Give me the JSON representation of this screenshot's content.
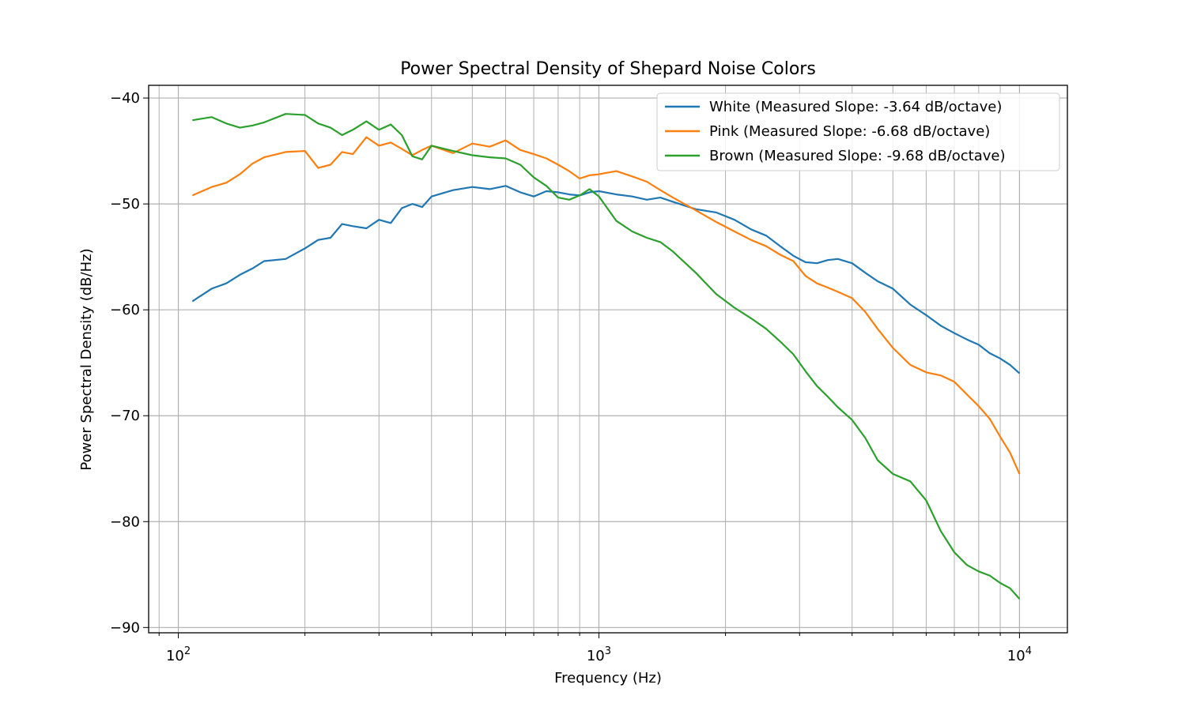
{
  "chart_data": {
    "type": "line",
    "title": "Power Spectral Density of Shepard Noise Colors",
    "xlabel": "Frequency (Hz)",
    "ylabel": "Power Spectral Density (dB/Hz)",
    "xscale": "log",
    "xlim": [
      85,
      13000
    ],
    "ylim": [
      -90.5,
      -38.8
    ],
    "grid": true,
    "grid_minor_x": true,
    "legend_position": "top-right",
    "x_ticks": [
      {
        "value": 100,
        "base": "10",
        "exp": "2"
      },
      {
        "value": 1000,
        "base": "10",
        "exp": "3"
      },
      {
        "value": 10000,
        "base": "10",
        "exp": "4"
      }
    ],
    "y_ticks": [
      {
        "value": -40,
        "label": "−40"
      },
      {
        "value": -50,
        "label": "−50"
      },
      {
        "value": -60,
        "label": "−60"
      },
      {
        "value": -70,
        "label": "−70"
      },
      {
        "value": -80,
        "label": "−80"
      },
      {
        "value": -90,
        "label": "−90"
      }
    ],
    "series": [
      {
        "name": "White (Measured Slope: -3.64 dB/octave)",
        "color": "#1f77b4",
        "x": [
          108,
          120,
          130,
          140,
          150,
          160,
          180,
          200,
          215,
          230,
          245,
          260,
          280,
          300,
          320,
          340,
          360,
          380,
          400,
          450,
          500,
          550,
          600,
          650,
          700,
          750,
          800,
          850,
          900,
          950,
          1000,
          1100,
          1200,
          1300,
          1400,
          1500,
          1700,
          1900,
          2100,
          2300,
          2500,
          2700,
          2900,
          3100,
          3300,
          3500,
          3700,
          4000,
          4300,
          4600,
          5000,
          5500,
          6000,
          6500,
          7000,
          7500,
          8000,
          8500,
          9000,
          9500,
          10000
        ],
        "values": [
          -59.2,
          -58.0,
          -57.5,
          -56.7,
          -56.1,
          -55.4,
          -55.2,
          -54.2,
          -53.4,
          -53.2,
          -51.9,
          -52.1,
          -52.3,
          -51.5,
          -51.8,
          -50.4,
          -50.0,
          -50.3,
          -49.3,
          -48.7,
          -48.4,
          -48.6,
          -48.3,
          -48.9,
          -49.3,
          -48.8,
          -48.9,
          -49.1,
          -49.2,
          -48.9,
          -48.8,
          -49.1,
          -49.3,
          -49.6,
          -49.4,
          -49.8,
          -50.5,
          -50.8,
          -51.5,
          -52.4,
          -53.0,
          -54.0,
          -54.9,
          -55.5,
          -55.6,
          -55.3,
          -55.2,
          -55.6,
          -56.5,
          -57.3,
          -58.0,
          -59.5,
          -60.5,
          -61.5,
          -62.2,
          -62.8,
          -63.3,
          -64.1,
          -64.6,
          -65.2,
          -66.0
        ]
      },
      {
        "name": "Pink (Measured Slope: -6.68 dB/octave)",
        "color": "#ff7f0e",
        "x": [
          108,
          120,
          130,
          140,
          150,
          160,
          180,
          200,
          215,
          230,
          245,
          260,
          280,
          300,
          320,
          340,
          360,
          380,
          400,
          450,
          500,
          550,
          600,
          650,
          700,
          750,
          800,
          850,
          900,
          950,
          1000,
          1100,
          1200,
          1300,
          1400,
          1500,
          1700,
          1900,
          2100,
          2300,
          2500,
          2700,
          2900,
          3100,
          3300,
          3500,
          3700,
          4000,
          4300,
          4600,
          5000,
          5500,
          6000,
          6500,
          7000,
          7500,
          8000,
          8500,
          9000,
          9500,
          10000
        ],
        "values": [
          -49.2,
          -48.4,
          -48.0,
          -47.2,
          -46.2,
          -45.6,
          -45.1,
          -45.0,
          -46.6,
          -46.3,
          -45.1,
          -45.3,
          -43.7,
          -44.5,
          -44.2,
          -44.8,
          -45.4,
          -44.9,
          -44.5,
          -45.2,
          -44.3,
          -44.6,
          -44.0,
          -44.9,
          -45.3,
          -45.7,
          -46.3,
          -46.9,
          -47.6,
          -47.3,
          -47.2,
          -46.9,
          -47.4,
          -47.9,
          -48.7,
          -49.4,
          -50.6,
          -51.7,
          -52.6,
          -53.4,
          -54.0,
          -54.8,
          -55.4,
          -56.8,
          -57.5,
          -57.9,
          -58.3,
          -58.9,
          -60.2,
          -61.8,
          -63.6,
          -65.2,
          -65.9,
          -66.2,
          -66.8,
          -68.0,
          -69.1,
          -70.3,
          -72.0,
          -73.5,
          -75.5
        ]
      },
      {
        "name": "Brown (Measured Slope: -9.68 dB/octave)",
        "color": "#2ca02c",
        "x": [
          108,
          120,
          130,
          140,
          150,
          160,
          180,
          200,
          215,
          230,
          245,
          260,
          280,
          300,
          320,
          340,
          360,
          380,
          400,
          450,
          500,
          550,
          600,
          650,
          700,
          750,
          800,
          850,
          900,
          950,
          1000,
          1100,
          1200,
          1300,
          1400,
          1500,
          1700,
          1900,
          2100,
          2300,
          2500,
          2700,
          2900,
          3100,
          3300,
          3500,
          3700,
          4000,
          4300,
          4600,
          5000,
          5500,
          6000,
          6500,
          7000,
          7500,
          8000,
          8500,
          9000,
          9500,
          10000
        ],
        "values": [
          -42.1,
          -41.8,
          -42.4,
          -42.8,
          -42.6,
          -42.3,
          -41.5,
          -41.6,
          -42.4,
          -42.8,
          -43.5,
          -43.0,
          -42.2,
          -43.0,
          -42.5,
          -43.5,
          -45.5,
          -45.8,
          -44.5,
          -45.0,
          -45.4,
          -45.6,
          -45.7,
          -46.3,
          -47.5,
          -48.3,
          -49.4,
          -49.6,
          -49.2,
          -48.6,
          -49.3,
          -51.6,
          -52.6,
          -53.2,
          -53.6,
          -54.5,
          -56.5,
          -58.5,
          -59.8,
          -60.8,
          -61.8,
          -63.0,
          -64.2,
          -65.8,
          -67.2,
          -68.2,
          -69.2,
          -70.4,
          -72.1,
          -74.2,
          -75.5,
          -76.2,
          -78.0,
          -80.9,
          -82.9,
          -84.1,
          -84.7,
          -85.1,
          -85.8,
          -86.3,
          -87.3
        ]
      }
    ]
  }
}
